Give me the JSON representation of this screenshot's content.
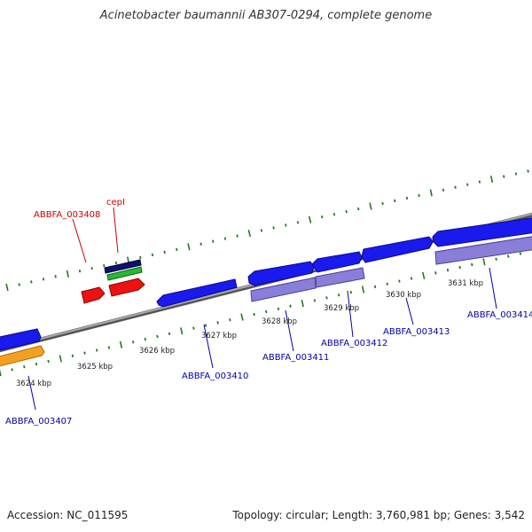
{
  "title": "Acinetobacter baumannii AB307-0294, complete genome",
  "footer": {
    "accession": "Accession: NC_011595",
    "summary": "Topology: circular; Length: 3,760,981 bp; Genes: 3,542"
  },
  "colors": {
    "background": "#ffffff",
    "backbone": "#888888",
    "tick": "#1e7a1e",
    "gene_forward": "#1a1aee",
    "gene_cds": "#8a7fd8",
    "gene_orange": "#f5a020",
    "gene_red": "#ee1111",
    "gene_green": "#22bb33",
    "gene_navy": "#101070",
    "label_blue": "#0000aa",
    "label_red": "#cc0000"
  },
  "scale_labels": [
    "3624 kbp",
    "3625 kbp",
    "3626 kbp",
    "3627 kbp",
    "3628 kbp",
    "3629 kbp",
    "3630 kbp",
    "3631 kbp"
  ],
  "gene_labels": [
    {
      "id": "abbfa-003407",
      "text": "ABBFA_003407",
      "color": "blue"
    },
    {
      "id": "abbfa-003408",
      "text": "ABBFA_003408",
      "color": "red"
    },
    {
      "id": "cepi",
      "text": "cepI",
      "color": "red"
    },
    {
      "id": "abbfa-003410",
      "text": "ABBFA_003410",
      "color": "blue"
    },
    {
      "id": "abbfa-003411",
      "text": "ABBFA_003411",
      "color": "blue"
    },
    {
      "id": "abbfa-003412",
      "text": "ABBFA_003412",
      "color": "blue"
    },
    {
      "id": "abbfa-003413",
      "text": "ABBFA_003413",
      "color": "blue"
    },
    {
      "id": "abbfa-003414",
      "text": "ABBFA_003414",
      "color": "blue"
    }
  ]
}
